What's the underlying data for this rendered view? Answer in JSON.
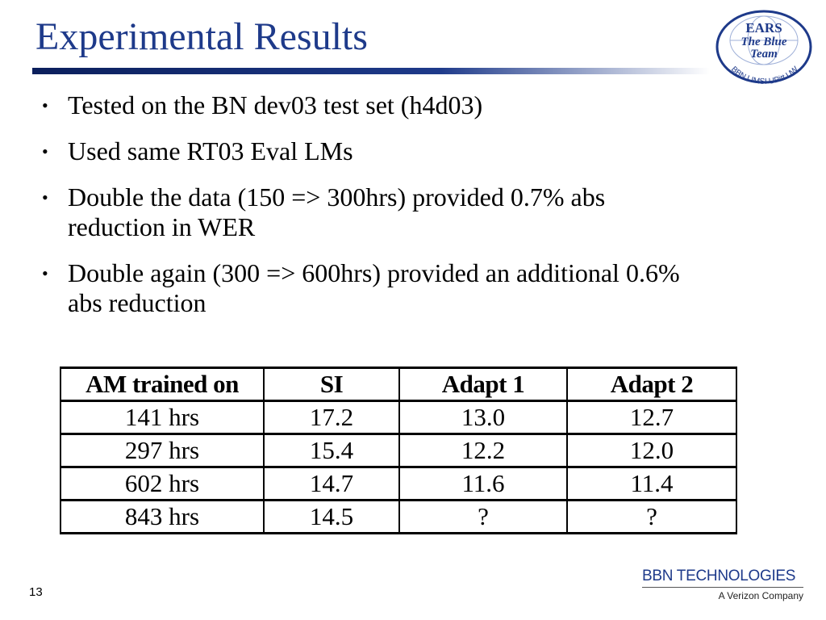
{
  "slide": {
    "title": "Experimental Results",
    "page_number": "13"
  },
  "bullets": [
    "Tested on the BN dev03 test set (h4d03)",
    "Used same RT03 Eval LMs",
    "Double the data (150 => 300hrs) provided 0.7% abs reduction in WER",
    "Double again (300 => 600hrs) provided an additional 0.6% abs reduction"
  ],
  "bullet_glyph": "•",
  "logo": {
    "line1": "EARS",
    "line2": "The Blue",
    "line3": "Team",
    "arc_text": "BBN LIMSI UPitt UW"
  },
  "table": {
    "headers": [
      "AM trained on",
      "SI",
      "Adapt 1",
      "Adapt 2"
    ],
    "rows": [
      [
        "141 hrs",
        "17.2",
        "13.0",
        "12.7"
      ],
      [
        "297 hrs",
        "15.4",
        "12.2",
        "12.0"
      ],
      [
        "602 hrs",
        "14.7",
        "11.6",
        "11.4"
      ],
      [
        "843 hrs",
        "14.5",
        "?",
        "?"
      ]
    ]
  },
  "footer": {
    "company": "BBN TECHNOLOGIES",
    "tagline": "A Verizon Company"
  },
  "colors": {
    "title": "#1e3a8a",
    "rule_dark": "#0b1f5c",
    "rule_light": "#ffffff",
    "logo_blue": "#1e3a8a"
  }
}
